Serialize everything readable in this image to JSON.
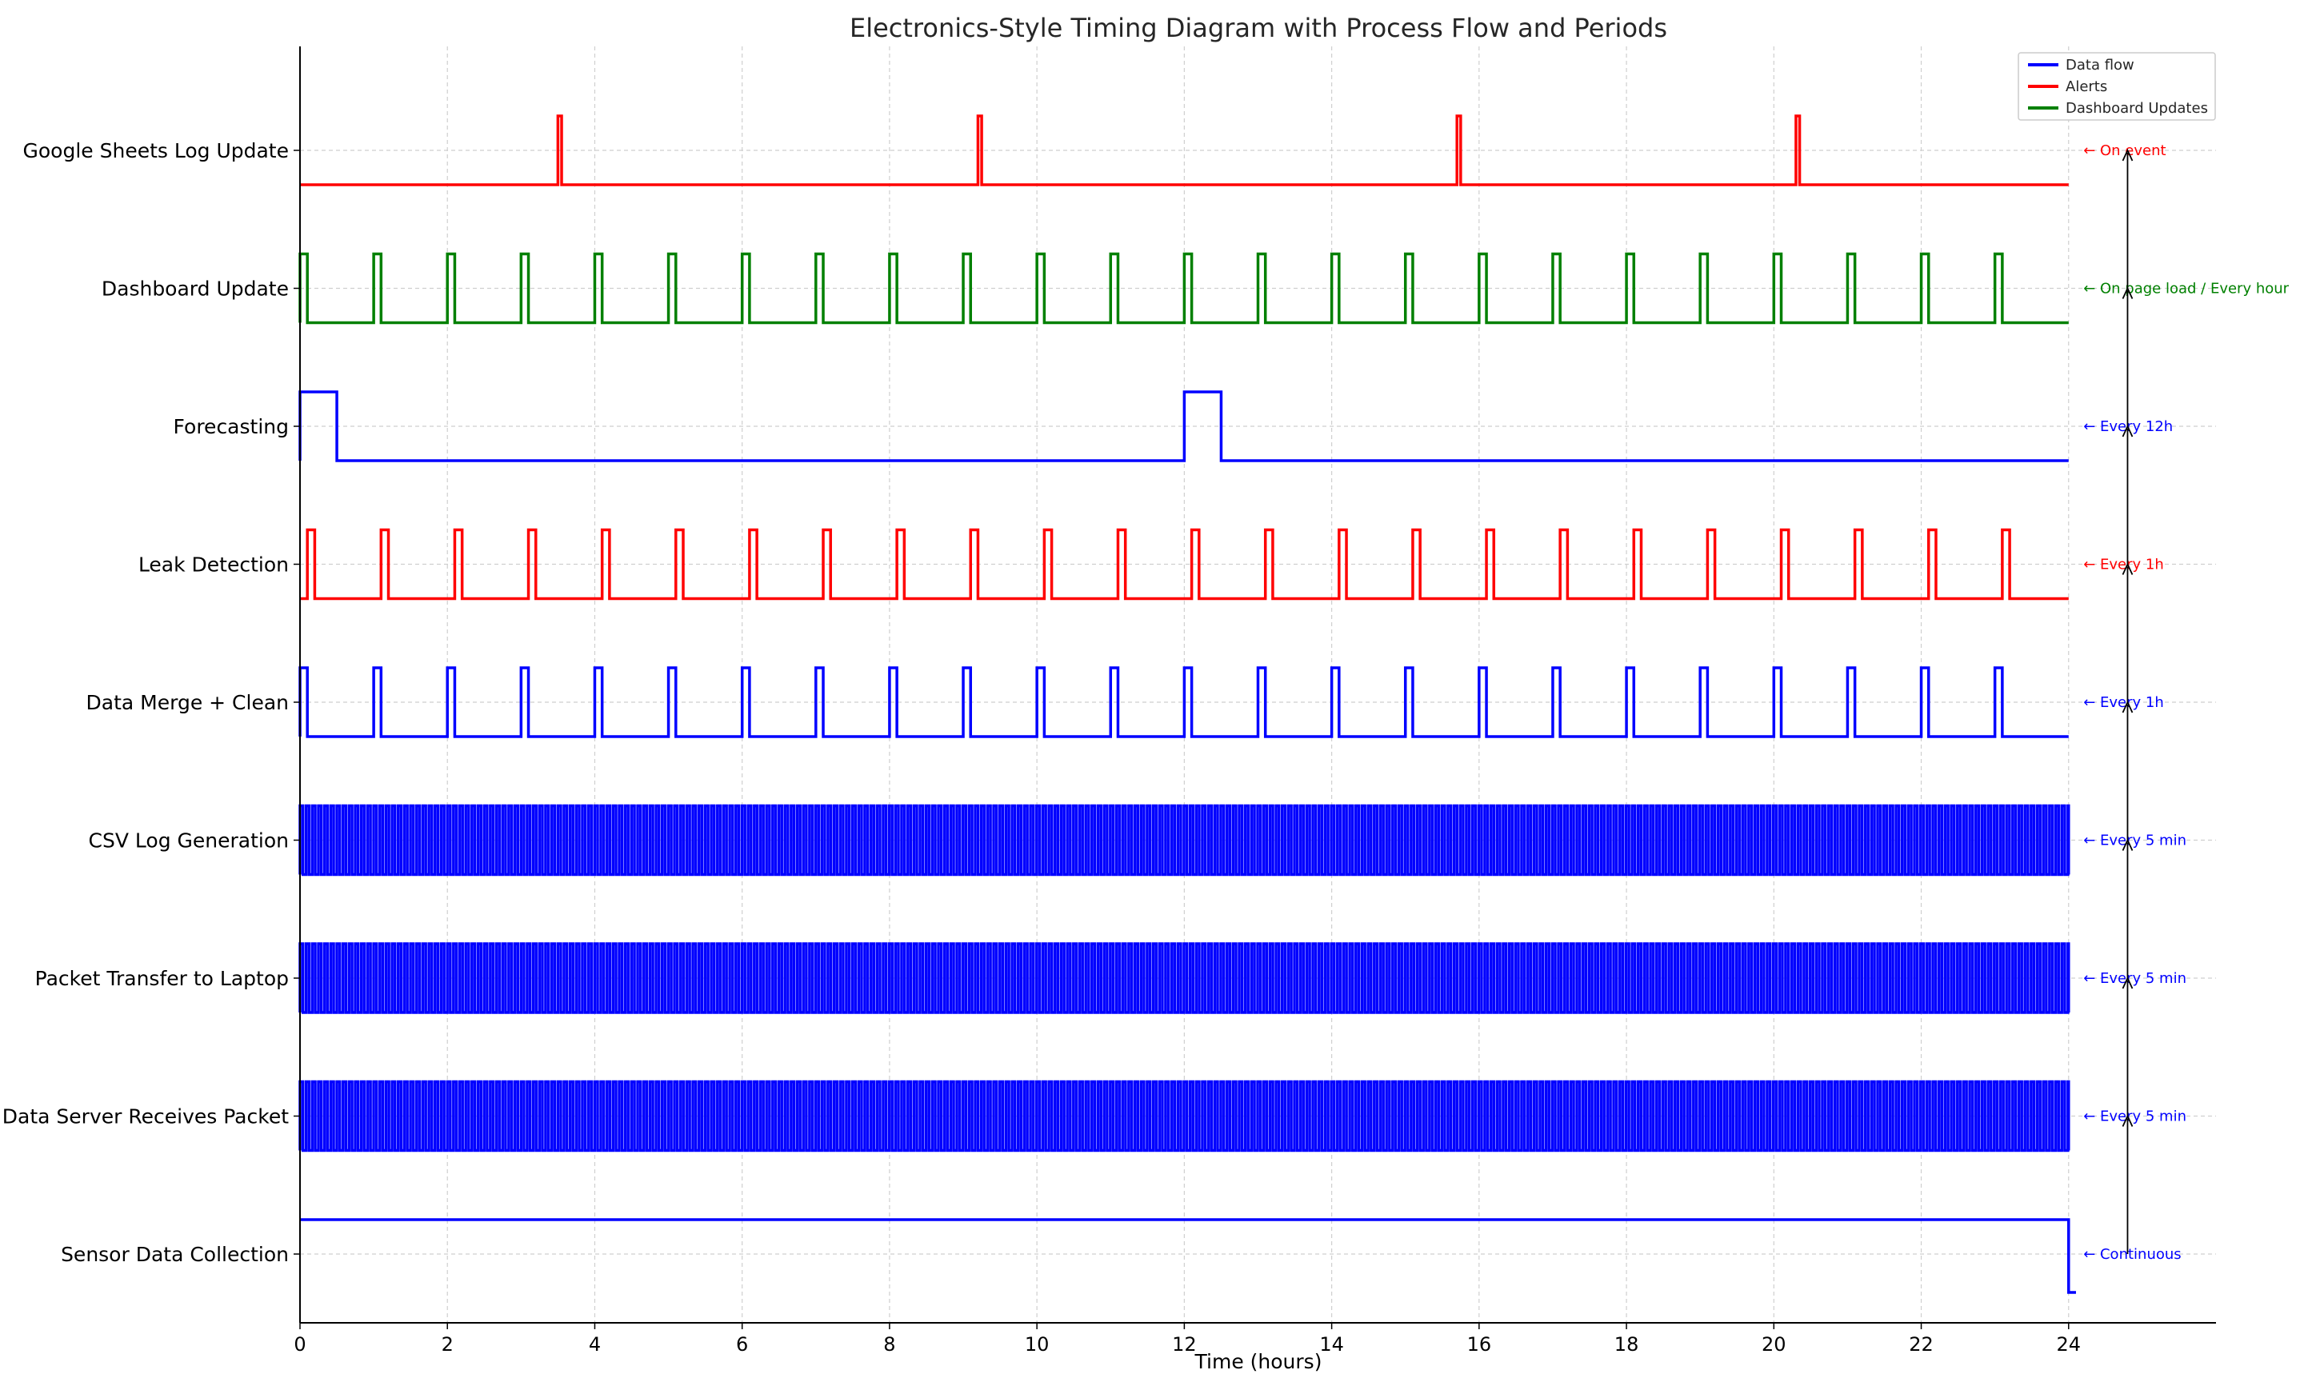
{
  "chart_data": {
    "type": "line",
    "title": "Electronics-Style Timing Diagram with Process Flow and Periods",
    "xlabel": "Time (hours)",
    "ylabel": "",
    "xlim": [
      0,
      26
    ],
    "xticks": [
      "0",
      "2",
      "4",
      "6",
      "8",
      "10",
      "12",
      "14",
      "16",
      "18",
      "20",
      "22",
      "24"
    ],
    "grid": true,
    "legend_position": "top-right",
    "legend": [
      {
        "label": "Data flow",
        "color": "#0000ff"
      },
      {
        "label": "Alerts",
        "color": "#ff0000"
      },
      {
        "label": "Dashboard Updates",
        "color": "#008000"
      }
    ],
    "series": [
      {
        "name": "Google Sheets Log Update",
        "color": "#ff0000",
        "annotation": "← On event",
        "pattern": "events",
        "event_times": [
          3.5,
          9.2,
          15.7,
          20.3
        ]
      },
      {
        "name": "Dashboard Update",
        "color": "#008000",
        "annotation": "← On page load / Every hour",
        "pattern": "periodic",
        "period": 1,
        "offset": 0,
        "width": 0.1
      },
      {
        "name": "Forecasting",
        "color": "#0000ff",
        "annotation": "← Every 12h",
        "pattern": "periodic",
        "period": 12,
        "offset": 0,
        "width": 0.5
      },
      {
        "name": "Leak Detection",
        "color": "#ff0000",
        "annotation": "← Every 1h",
        "pattern": "periodic",
        "period": 1,
        "offset": 0.1,
        "width": 0.1
      },
      {
        "name": "Data Merge + Clean",
        "color": "#0000ff",
        "annotation": "← Every 1h",
        "pattern": "periodic",
        "period": 1,
        "offset": 0,
        "width": 0.1
      },
      {
        "name": "CSV Log Generation",
        "color": "#0000ff",
        "annotation": "← Every 5 min",
        "pattern": "periodic",
        "period": 0.0833,
        "offset": 0,
        "width": 0.04
      },
      {
        "name": "Packet Transfer to Laptop",
        "color": "#0000ff",
        "annotation": "← Every 5 min",
        "pattern": "periodic",
        "period": 0.0833,
        "offset": 0,
        "width": 0.04
      },
      {
        "name": "Data Server Receives Packet",
        "color": "#0000ff",
        "annotation": "← Every 5 min",
        "pattern": "periodic",
        "period": 0.0833,
        "offset": 0,
        "width": 0.04
      },
      {
        "name": "Sensor Data Collection",
        "color": "#0000ff",
        "annotation": "← Continuous",
        "pattern": "continuous",
        "end": 24
      }
    ]
  }
}
